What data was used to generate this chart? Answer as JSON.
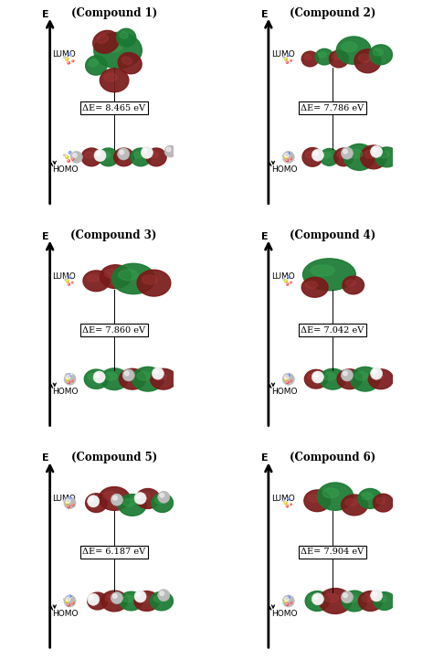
{
  "compounds": [
    {
      "name": "(Compound 1)",
      "delta_e": "ΔE= 8.465 eV"
    },
    {
      "name": "(Compound 2)",
      "delta_e": "ΔE= 7.786 eV"
    },
    {
      "name": "(Compound 3)",
      "delta_e": "ΔE= 7.860 eV"
    },
    {
      "name": "(Compound 4)",
      "delta_e": "ΔE= 7.042 eV"
    },
    {
      "name": "(Compound 5)",
      "delta_e": "ΔE= 6.187 eV"
    },
    {
      "name": "(Compound 6)",
      "delta_e": "ΔE= 7.904 eV"
    }
  ],
  "background_color": "#ffffff",
  "box_color": "#ffffff",
  "text_color": "#000000",
  "title_fontsize": 8.5,
  "label_fontsize": 6.5,
  "energy_fontsize": 7,
  "figsize": [
    4.74,
    7.22
  ],
  "dpi": 100,
  "green_color": "#1a7a32",
  "dark_red_color": "#7a1a1a",
  "green_light": "#3aaa52",
  "dark_red_light": "#aa3a3a"
}
